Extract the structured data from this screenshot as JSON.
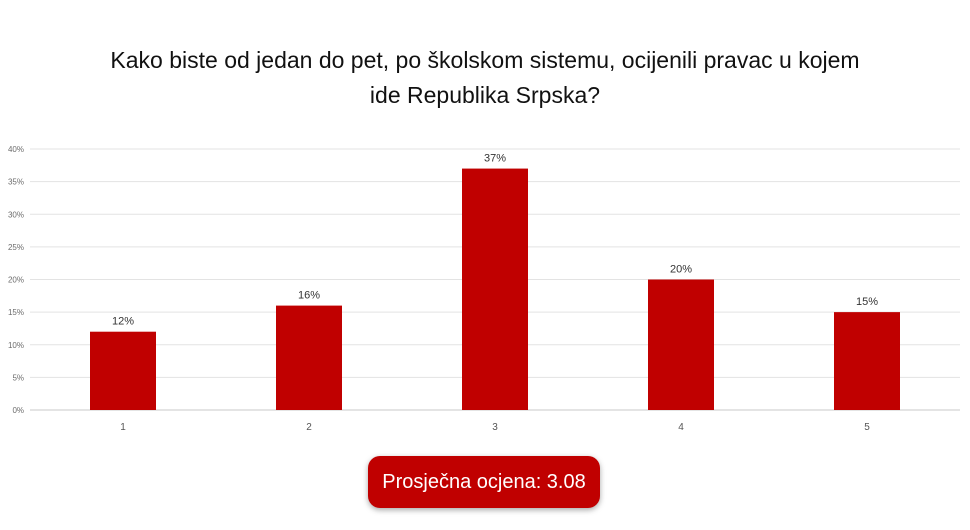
{
  "chart_data": {
    "type": "bar",
    "title": "Kako biste od jedan do pet, po školskom sistemu, ocijenili pravac u kojem ide Republika Srpska?",
    "title_lines": [
      "Kako biste od jedan do pet, po školskom sistemu, ocijenili pravac u kojem",
      "ide Republika Srpska?"
    ],
    "categories": [
      "1",
      "2",
      "3",
      "4",
      "5"
    ],
    "values": [
      12,
      16,
      37,
      20,
      15
    ],
    "data_labels": [
      "12%",
      "16%",
      "37%",
      "20%",
      "15%"
    ],
    "y_ticks": [
      0,
      5,
      10,
      15,
      20,
      25,
      30,
      35,
      40
    ],
    "y_tick_labels": [
      "0%",
      "5%",
      "10%",
      "15%",
      "20%",
      "25%",
      "30%",
      "35%",
      "40%"
    ],
    "ylim": [
      0,
      40
    ],
    "grid": true,
    "legend": "none",
    "bar_color": "#c00000",
    "xlabel": "",
    "ylabel": ""
  },
  "average_badge": {
    "text": "Prosječna ocjena: 3.08",
    "background": "#c00000"
  }
}
